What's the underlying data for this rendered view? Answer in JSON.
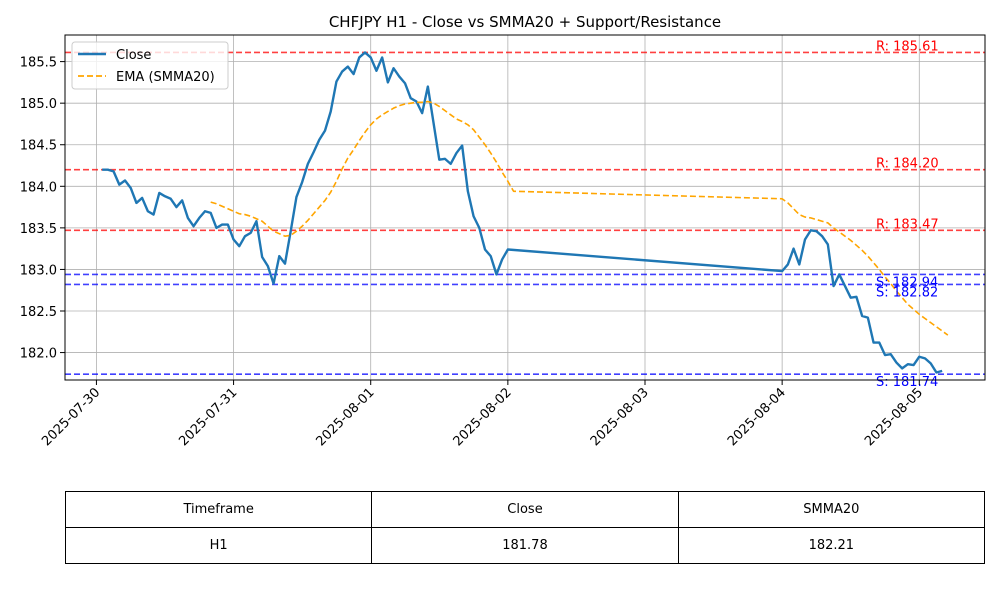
{
  "chart_data": {
    "type": "line",
    "title": "CHFJPY H1 - Close vs SMMA20 + Support/Resistance",
    "xlabel": "",
    "ylabel": "",
    "x_ticks": [
      "2025-07-30",
      "2025-07-31",
      "2025-08-01",
      "2025-08-02",
      "2025-08-03",
      "2025-08-04",
      "2025-08-05"
    ],
    "xlim": [
      "2025-07-29T18:30",
      "2025-08-05T11:30"
    ],
    "y_ticks": [
      "182.0",
      "182.5",
      "183.0",
      "183.5",
      "184.0",
      "184.5",
      "185.0",
      "185.5"
    ],
    "ylim": [
      181.67,
      185.82
    ],
    "grid": true,
    "legend": "top-left",
    "series": [
      {
        "name": "Close",
        "color": "#1f77b4",
        "style": "solid",
        "points": [
          [
            "2025-07-30T01:00",
            184.2
          ],
          [
            "2025-07-30T02:00",
            184.2
          ],
          [
            "2025-07-30T03:00",
            184.18
          ],
          [
            "2025-07-30T04:00",
            184.02
          ],
          [
            "2025-07-30T05:00",
            184.07
          ],
          [
            "2025-07-30T06:00",
            183.98
          ],
          [
            "2025-07-30T07:00",
            183.8
          ],
          [
            "2025-07-30T08:00",
            183.86
          ],
          [
            "2025-07-30T09:00",
            183.7
          ],
          [
            "2025-07-30T10:00",
            183.66
          ],
          [
            "2025-07-30T11:00",
            183.92
          ],
          [
            "2025-07-30T12:00",
            183.88
          ],
          [
            "2025-07-30T13:00",
            183.85
          ],
          [
            "2025-07-30T14:00",
            183.75
          ],
          [
            "2025-07-30T15:00",
            183.83
          ],
          [
            "2025-07-30T16:00",
            183.62
          ],
          [
            "2025-07-30T17:00",
            183.52
          ],
          [
            "2025-07-30T18:00",
            183.62
          ],
          [
            "2025-07-30T19:00",
            183.7
          ],
          [
            "2025-07-30T20:00",
            183.68
          ],
          [
            "2025-07-30T21:00",
            183.5
          ],
          [
            "2025-07-30T22:00",
            183.54
          ],
          [
            "2025-07-30T23:00",
            183.54
          ],
          [
            "2025-07-31T00:00",
            183.36
          ],
          [
            "2025-07-31T01:00",
            183.28
          ],
          [
            "2025-07-31T02:00",
            183.4
          ],
          [
            "2025-07-31T03:00",
            183.44
          ],
          [
            "2025-07-31T04:00",
            183.58
          ],
          [
            "2025-07-31T05:00",
            183.15
          ],
          [
            "2025-07-31T06:00",
            183.04
          ],
          [
            "2025-07-31T07:00",
            182.83
          ],
          [
            "2025-07-31T08:00",
            183.16
          ],
          [
            "2025-07-31T09:00",
            183.07
          ],
          [
            "2025-07-31T10:00",
            183.46
          ],
          [
            "2025-07-31T11:00",
            183.87
          ],
          [
            "2025-07-31T12:00",
            184.05
          ],
          [
            "2025-07-31T13:00",
            184.27
          ],
          [
            "2025-07-31T14:00",
            184.41
          ],
          [
            "2025-07-31T15:00",
            184.56
          ],
          [
            "2025-07-31T16:00",
            184.67
          ],
          [
            "2025-07-31T17:00",
            184.9
          ],
          [
            "2025-07-31T18:00",
            185.26
          ],
          [
            "2025-07-31T19:00",
            185.38
          ],
          [
            "2025-07-31T20:00",
            185.44
          ],
          [
            "2025-07-31T21:00",
            185.35
          ],
          [
            "2025-07-31T22:00",
            185.55
          ],
          [
            "2025-07-31T23:00",
            185.61
          ],
          [
            "2025-08-01T00:00",
            185.55
          ],
          [
            "2025-08-01T01:00",
            185.39
          ],
          [
            "2025-08-01T02:00",
            185.55
          ],
          [
            "2025-08-01T03:00",
            185.25
          ],
          [
            "2025-08-01T04:00",
            185.42
          ],
          [
            "2025-08-01T05:00",
            185.32
          ],
          [
            "2025-08-01T06:00",
            185.24
          ],
          [
            "2025-08-01T07:00",
            185.06
          ],
          [
            "2025-08-01T08:00",
            185.02
          ],
          [
            "2025-08-01T09:00",
            184.88
          ],
          [
            "2025-08-01T10:00",
            185.2
          ],
          [
            "2025-08-01T11:00",
            184.76
          ],
          [
            "2025-08-01T12:00",
            184.32
          ],
          [
            "2025-08-01T13:00",
            184.33
          ],
          [
            "2025-08-01T14:00",
            184.27
          ],
          [
            "2025-08-01T15:00",
            184.4
          ],
          [
            "2025-08-01T16:00",
            184.49
          ],
          [
            "2025-08-01T17:00",
            183.94
          ],
          [
            "2025-08-01T18:00",
            183.64
          ],
          [
            "2025-08-01T19:00",
            183.5
          ],
          [
            "2025-08-01T20:00",
            183.24
          ],
          [
            "2025-08-01T21:00",
            183.16
          ],
          [
            "2025-08-01T22:00",
            182.94
          ],
          [
            "2025-08-01T23:00",
            183.12
          ],
          [
            "2025-08-02T00:00",
            183.24
          ],
          [
            "2025-08-04T00:00",
            182.98
          ],
          [
            "2025-08-04T01:00",
            183.06
          ],
          [
            "2025-08-04T02:00",
            183.25
          ],
          [
            "2025-08-04T03:00",
            183.06
          ],
          [
            "2025-08-04T04:00",
            183.36
          ],
          [
            "2025-08-04T05:00",
            183.47
          ],
          [
            "2025-08-04T06:00",
            183.46
          ],
          [
            "2025-08-04T07:00",
            183.4
          ],
          [
            "2025-08-04T08:00",
            183.3
          ],
          [
            "2025-08-04T09:00",
            182.8
          ],
          [
            "2025-08-04T10:00",
            182.94
          ],
          [
            "2025-08-04T11:00",
            182.8
          ],
          [
            "2025-08-04T12:00",
            182.66
          ],
          [
            "2025-08-04T13:00",
            182.67
          ],
          [
            "2025-08-04T14:00",
            182.44
          ],
          [
            "2025-08-04T15:00",
            182.42
          ],
          [
            "2025-08-04T16:00",
            182.12
          ],
          [
            "2025-08-04T17:00",
            182.12
          ],
          [
            "2025-08-04T18:00",
            181.97
          ],
          [
            "2025-08-04T19:00",
            181.98
          ],
          [
            "2025-08-04T20:00",
            181.88
          ],
          [
            "2025-08-04T21:00",
            181.81
          ],
          [
            "2025-08-04T22:00",
            181.86
          ],
          [
            "2025-08-04T23:00",
            181.85
          ],
          [
            "2025-08-05T00:00",
            181.95
          ],
          [
            "2025-08-05T01:00",
            181.93
          ],
          [
            "2025-08-05T02:00",
            181.87
          ],
          [
            "2025-08-05T03:00",
            181.76
          ],
          [
            "2025-08-05T04:00",
            181.78
          ]
        ]
      },
      {
        "name": "EMA (SMMA20)",
        "color": "#ffa500",
        "style": "dashed",
        "points": [
          [
            "2025-07-30T20:00",
            183.81
          ],
          [
            "2025-07-30T21:00",
            183.79
          ],
          [
            "2025-07-30T22:00",
            183.76
          ],
          [
            "2025-07-30T23:00",
            183.73
          ],
          [
            "2025-07-31T00:00",
            183.7
          ],
          [
            "2025-07-31T01:00",
            183.67
          ],
          [
            "2025-07-31T02:00",
            183.66
          ],
          [
            "2025-07-31T03:00",
            183.64
          ],
          [
            "2025-07-31T04:00",
            183.61
          ],
          [
            "2025-07-31T05:00",
            183.58
          ],
          [
            "2025-07-31T06:00",
            183.52
          ],
          [
            "2025-07-31T07:00",
            183.46
          ],
          [
            "2025-07-31T08:00",
            183.43
          ],
          [
            "2025-07-31T09:00",
            183.4
          ],
          [
            "2025-07-31T10:00",
            183.41
          ],
          [
            "2025-07-31T11:00",
            183.46
          ],
          [
            "2025-07-31T12:00",
            183.52
          ],
          [
            "2025-07-31T13:00",
            183.59
          ],
          [
            "2025-07-31T14:00",
            183.67
          ],
          [
            "2025-07-31T15:00",
            183.75
          ],
          [
            "2025-07-31T16:00",
            183.83
          ],
          [
            "2025-07-31T17:00",
            183.93
          ],
          [
            "2025-07-31T18:00",
            184.06
          ],
          [
            "2025-07-31T19:00",
            184.21
          ],
          [
            "2025-07-31T20:00",
            184.34
          ],
          [
            "2025-07-31T21:00",
            184.44
          ],
          [
            "2025-07-31T22:00",
            184.55
          ],
          [
            "2025-07-31T23:00",
            184.65
          ],
          [
            "2025-08-01T00:00",
            184.74
          ],
          [
            "2025-08-01T01:00",
            184.81
          ],
          [
            "2025-08-01T02:00",
            184.86
          ],
          [
            "2025-08-01T03:00",
            184.9
          ],
          [
            "2025-08-01T04:00",
            184.94
          ],
          [
            "2025-08-01T05:00",
            184.97
          ],
          [
            "2025-08-01T06:00",
            184.99
          ],
          [
            "2025-08-01T07:00",
            185.0
          ],
          [
            "2025-08-01T08:00",
            185.01
          ],
          [
            "2025-08-01T09:00",
            185.01
          ],
          [
            "2025-08-01T10:00",
            185.02
          ],
          [
            "2025-08-01T11:00",
            185.0
          ],
          [
            "2025-08-01T12:00",
            184.96
          ],
          [
            "2025-08-01T13:00",
            184.91
          ],
          [
            "2025-08-01T14:00",
            184.86
          ],
          [
            "2025-08-01T15:00",
            184.81
          ],
          [
            "2025-08-01T16:00",
            184.78
          ],
          [
            "2025-08-01T17:00",
            184.74
          ],
          [
            "2025-08-01T18:00",
            184.68
          ],
          [
            "2025-08-01T19:00",
            184.59
          ],
          [
            "2025-08-01T20:00",
            184.5
          ],
          [
            "2025-08-01T21:00",
            184.4
          ],
          [
            "2025-08-01T22:00",
            184.29
          ],
          [
            "2025-08-01T23:00",
            184.17
          ],
          [
            "2025-08-02T00:00",
            184.06
          ],
          [
            "2025-08-02T01:00",
            183.94
          ],
          [
            "2025-08-04T00:00",
            183.85
          ],
          [
            "2025-08-04T01:00",
            183.8
          ],
          [
            "2025-08-04T02:00",
            183.73
          ],
          [
            "2025-08-04T03:00",
            183.66
          ],
          [
            "2025-08-04T04:00",
            183.63
          ],
          [
            "2025-08-04T05:00",
            183.62
          ],
          [
            "2025-08-04T06:00",
            183.6
          ],
          [
            "2025-08-04T07:00",
            183.58
          ],
          [
            "2025-08-04T08:00",
            183.56
          ],
          [
            "2025-08-04T09:00",
            183.5
          ],
          [
            "2025-08-04T10:00",
            183.45
          ],
          [
            "2025-08-04T11:00",
            183.4
          ],
          [
            "2025-08-04T12:00",
            183.35
          ],
          [
            "2025-08-04T13:00",
            183.29
          ],
          [
            "2025-08-04T14:00",
            183.23
          ],
          [
            "2025-08-04T15:00",
            183.16
          ],
          [
            "2025-08-04T16:00",
            183.08
          ],
          [
            "2025-08-04T17:00",
            183.0
          ],
          [
            "2025-08-04T18:00",
            182.91
          ],
          [
            "2025-08-04T19:00",
            182.83
          ],
          [
            "2025-08-04T20:00",
            182.74
          ],
          [
            "2025-08-04T21:00",
            182.66
          ],
          [
            "2025-08-04T22:00",
            182.58
          ],
          [
            "2025-08-04T23:00",
            182.52
          ],
          [
            "2025-08-05T00:00",
            182.46
          ],
          [
            "2025-08-05T01:00",
            182.41
          ],
          [
            "2025-08-05T02:00",
            182.36
          ],
          [
            "2025-08-05T03:00",
            182.31
          ],
          [
            "2025-08-05T04:00",
            182.26
          ],
          [
            "2025-08-05T05:00",
            182.21
          ]
        ]
      }
    ],
    "levels": [
      {
        "kind": "resistance",
        "value": 185.61,
        "label": "R: 185.61",
        "color": "#ff0000"
      },
      {
        "kind": "resistance",
        "value": 184.2,
        "label": "R: 184.20",
        "color": "#ff0000"
      },
      {
        "kind": "resistance",
        "value": 183.47,
        "label": "R: 183.47",
        "color": "#ff0000"
      },
      {
        "kind": "support",
        "value": 182.94,
        "label": "S: 182.94",
        "color": "#0000ff"
      },
      {
        "kind": "support",
        "value": 182.82,
        "label": "S: 182.82",
        "color": "#0000ff"
      },
      {
        "kind": "support",
        "value": 181.74,
        "label": "S: 181.74",
        "color": "#0000ff"
      }
    ]
  },
  "table": {
    "headers": [
      "Timeframe",
      "Close",
      "SMMA20"
    ],
    "row": [
      "H1",
      "181.78",
      "182.21"
    ]
  }
}
